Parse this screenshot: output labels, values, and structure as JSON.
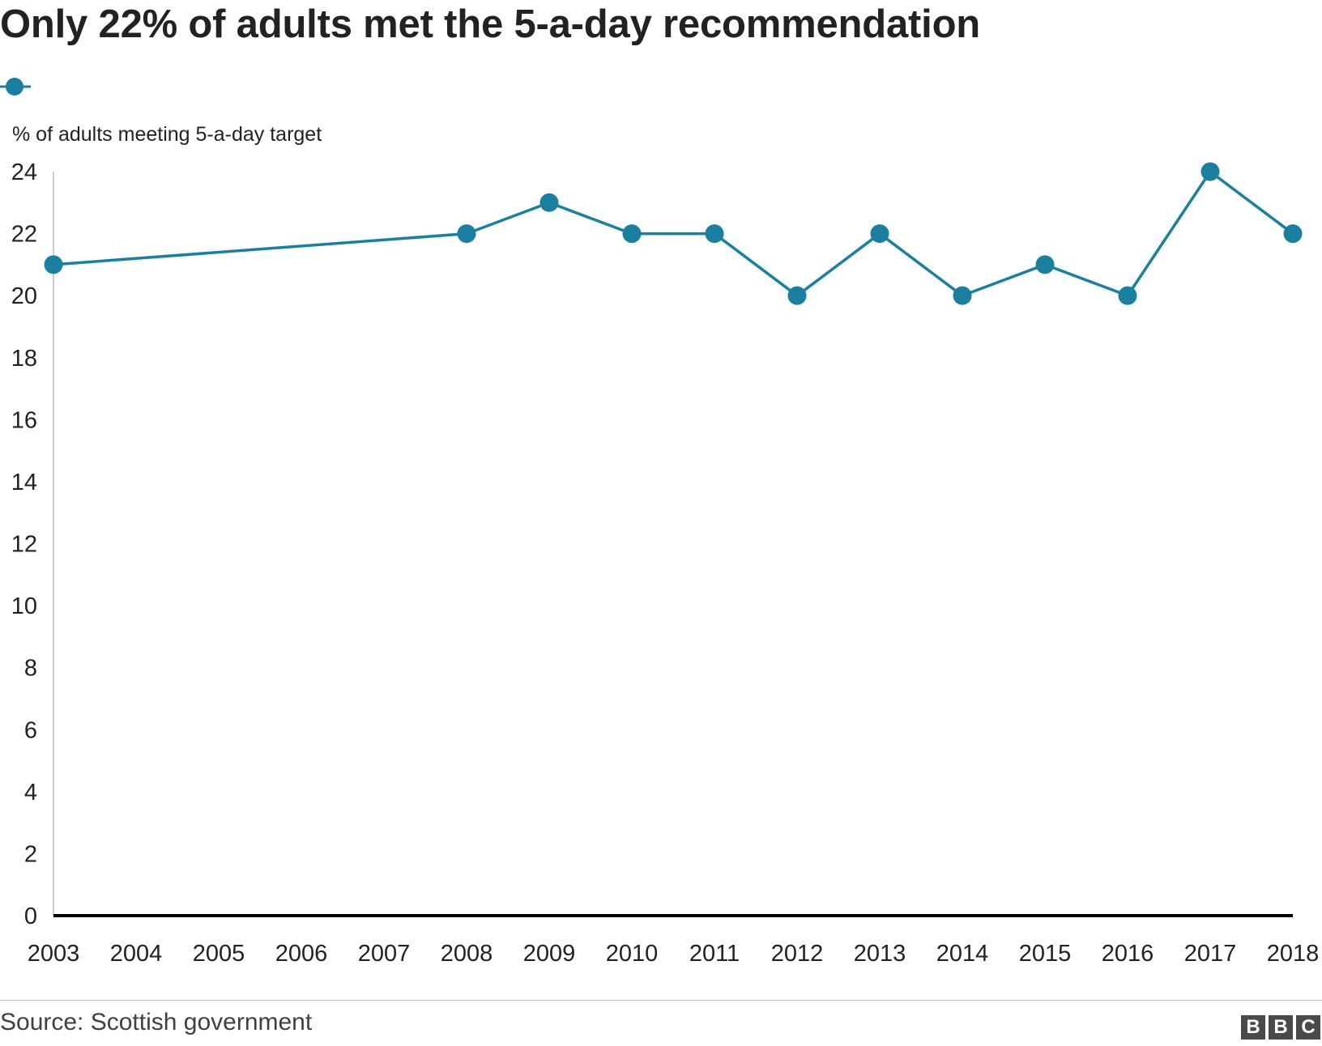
{
  "title": "Only 22% of adults met the 5-a-day recommendation",
  "source": "Source: Scottish government",
  "logo_letters": [
    "B",
    "B",
    "C"
  ],
  "colors": {
    "series": "#1b7fa0",
    "axis": "#000000",
    "text": "#222222"
  },
  "chart_data": {
    "type": "line",
    "title": "Only 22% of adults met the 5-a-day recommendation",
    "xlabel": "",
    "ylabel": "% of adults meeting 5-a-day target",
    "x_ticks": [
      "2003",
      "2004",
      "2005",
      "2006",
      "2007",
      "2008",
      "2009",
      "2010",
      "2011",
      "2012",
      "2013",
      "2014",
      "2015",
      "2016",
      "2017",
      "2018"
    ],
    "y_ticks": [
      0,
      2,
      4,
      6,
      8,
      10,
      12,
      14,
      16,
      18,
      20,
      22,
      24
    ],
    "xlim": [
      2003,
      2018
    ],
    "ylim": [
      0,
      24
    ],
    "grid": false,
    "legend": "top-left",
    "series": [
      {
        "color": "#1b7fa0",
        "x": [
          2003,
          2008,
          2009,
          2010,
          2011,
          2012,
          2013,
          2014,
          2015,
          2016,
          2017,
          2018
        ],
        "y": [
          21,
          22,
          23,
          22,
          22,
          20,
          22,
          20,
          21,
          20,
          24,
          22
        ]
      }
    ]
  }
}
